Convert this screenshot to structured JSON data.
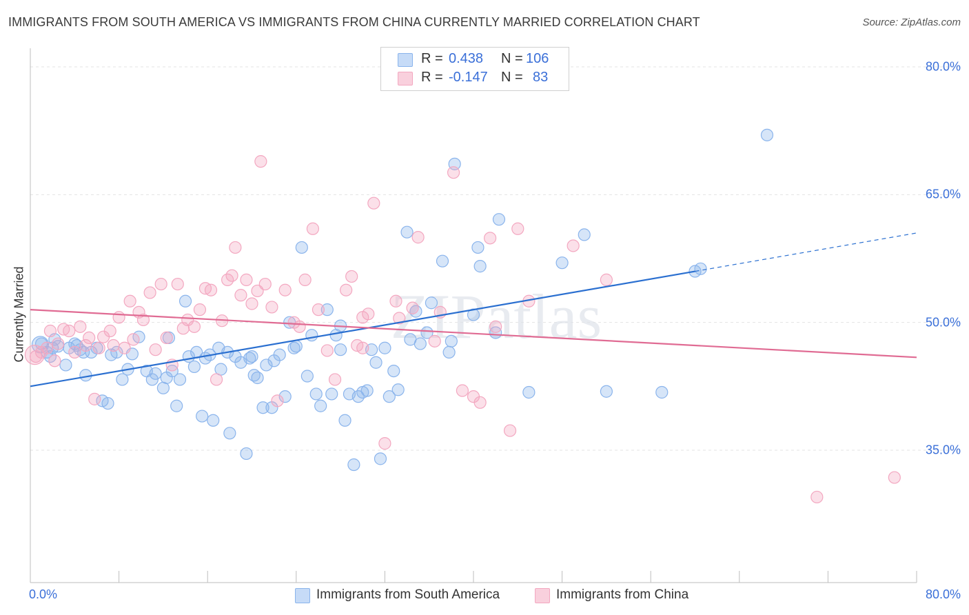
{
  "title": "IMMIGRANTS FROM SOUTH AMERICA VS IMMIGRANTS FROM CHINA CURRENTLY MARRIED CORRELATION CHART",
  "source": "Source: ZipAtlas.com",
  "watermark": "ZIPatlas",
  "legend": {
    "rows": [
      {
        "r_label": "R =",
        "r_value": "0.438",
        "n_label": "N =",
        "n_value": "106",
        "color": "#8ab4ec"
      },
      {
        "r_label": "R =",
        "r_value": "-0.147",
        "n_label": "N =",
        "n_value": "83",
        "color": "#f3a7c0"
      }
    ]
  },
  "chart_data": {
    "type": "scatter",
    "title": "IMMIGRANTS FROM SOUTH AMERICA VS IMMIGRANTS FROM CHINA CURRENTLY MARRIED CORRELATION CHART",
    "xlabel": "",
    "ylabel": "Currently Married",
    "xlim": [
      0,
      80
    ],
    "ylim": [
      20,
      82
    ],
    "x_tick_labels": [
      "0.0%",
      "80.0%"
    ],
    "y_ticks": [
      35,
      50,
      65,
      80
    ],
    "y_tick_labels": [
      "35.0%",
      "50.0%",
      "65.0%",
      "80.0%"
    ],
    "grid": true,
    "legend_position": "bottom",
    "series": [
      {
        "name": "Immigrants from South America",
        "color": "#8ab4ec",
        "line_color": "#2a6fd0",
        "trend": {
          "x0": 0,
          "y0": 42.5,
          "x1": 60,
          "y1": 56.0,
          "x_dash_end": 80,
          "y_dash_end": 60.5
        },
        "points": [
          [
            1.0,
            47.5
          ],
          [
            1.5,
            46.5
          ],
          [
            2.0,
            47.0
          ],
          [
            1.8,
            46.0
          ],
          [
            2.5,
            47.2
          ],
          [
            3.2,
            45.0
          ],
          [
            3.5,
            47.0
          ],
          [
            4.0,
            47.5
          ],
          [
            4.5,
            46.8
          ],
          [
            4.8,
            46.5
          ],
          [
            5.0,
            43.8
          ],
          [
            5.5,
            46.5
          ],
          [
            6.0,
            47.0
          ],
          [
            6.5,
            40.8
          ],
          [
            7.0,
            40.5
          ],
          [
            7.3,
            46.2
          ],
          [
            7.8,
            46.5
          ],
          [
            8.3,
            43.3
          ],
          [
            8.8,
            44.5
          ],
          [
            9.2,
            46.3
          ],
          [
            9.8,
            48.3
          ],
          [
            10.5,
            44.3
          ],
          [
            11.0,
            43.3
          ],
          [
            11.3,
            44.0
          ],
          [
            12.0,
            42.3
          ],
          [
            12.3,
            43.5
          ],
          [
            12.8,
            44.3
          ],
          [
            13.2,
            40.2
          ],
          [
            13.5,
            43.3
          ],
          [
            14.0,
            52.5
          ],
          [
            14.3,
            46.0
          ],
          [
            14.8,
            44.8
          ],
          [
            15.0,
            46.5
          ],
          [
            15.5,
            39.0
          ],
          [
            15.8,
            45.8
          ],
          [
            16.2,
            46.2
          ],
          [
            16.5,
            38.5
          ],
          [
            17.0,
            47.0
          ],
          [
            17.2,
            44.5
          ],
          [
            17.8,
            46.5
          ],
          [
            18.0,
            37.0
          ],
          [
            18.5,
            46.0
          ],
          [
            19.0,
            45.3
          ],
          [
            19.5,
            34.6
          ],
          [
            19.8,
            45.8
          ],
          [
            20.2,
            43.8
          ],
          [
            20.5,
            43.5
          ],
          [
            21.0,
            40.0
          ],
          [
            21.3,
            45.0
          ],
          [
            21.8,
            40.0
          ],
          [
            22.0,
            45.5
          ],
          [
            22.5,
            46.2
          ],
          [
            23.0,
            41.3
          ],
          [
            23.4,
            50.0
          ],
          [
            23.8,
            47.0
          ],
          [
            24.0,
            47.2
          ],
          [
            24.5,
            58.8
          ],
          [
            25.0,
            43.7
          ],
          [
            25.4,
            48.5
          ],
          [
            25.8,
            41.6
          ],
          [
            26.2,
            40.2
          ],
          [
            26.8,
            51.5
          ],
          [
            27.2,
            41.6
          ],
          [
            27.6,
            48.5
          ],
          [
            28.0,
            49.6
          ],
          [
            28.4,
            38.5
          ],
          [
            28.8,
            41.6
          ],
          [
            29.2,
            33.3
          ],
          [
            29.6,
            41.3
          ],
          [
            30.0,
            41.8
          ],
          [
            30.4,
            42.0
          ],
          [
            30.8,
            46.8
          ],
          [
            31.2,
            45.3
          ],
          [
            31.6,
            34.0
          ],
          [
            32.0,
            47.0
          ],
          [
            32.4,
            41.3
          ],
          [
            32.8,
            44.3
          ],
          [
            33.2,
            42.1
          ],
          [
            34.0,
            60.6
          ],
          [
            34.3,
            48.0
          ],
          [
            34.8,
            51.3
          ],
          [
            35.2,
            47.5
          ],
          [
            35.8,
            48.8
          ],
          [
            36.2,
            52.3
          ],
          [
            37.2,
            57.2
          ],
          [
            37.8,
            46.5
          ],
          [
            38.3,
            68.6
          ],
          [
            40.0,
            50.9
          ],
          [
            40.4,
            58.8
          ],
          [
            40.6,
            56.6
          ],
          [
            42.0,
            48.8
          ],
          [
            42.3,
            62.1
          ],
          [
            45.0,
            41.8
          ],
          [
            48.0,
            57.0
          ],
          [
            50.0,
            60.3
          ],
          [
            52.0,
            41.9
          ],
          [
            57.0,
            41.8
          ],
          [
            60.0,
            56.0
          ],
          [
            60.5,
            56.3
          ],
          [
            66.5,
            72.0
          ],
          [
            2.2,
            48.0
          ],
          [
            4.2,
            47.3
          ],
          [
            12.5,
            48.2
          ],
          [
            20.0,
            46.0
          ],
          [
            28.0,
            46.8
          ],
          [
            38.0,
            47.8
          ]
        ]
      },
      {
        "name": "Immigrants from China",
        "color": "#f3a7c0",
        "line_color": "#e06b93",
        "trend": {
          "x0": 0,
          "y0": 51.5,
          "x1": 80,
          "y1": 45.9
        },
        "points": [
          [
            0.5,
            46.0
          ],
          [
            1.0,
            46.5
          ],
          [
            1.5,
            47.0
          ],
          [
            1.8,
            49.0
          ],
          [
            2.2,
            45.5
          ],
          [
            2.5,
            47.5
          ],
          [
            3.0,
            49.2
          ],
          [
            3.5,
            49.0
          ],
          [
            4.0,
            46.5
          ],
          [
            4.5,
            49.5
          ],
          [
            5.0,
            47.3
          ],
          [
            5.3,
            48.2
          ],
          [
            5.8,
            41.0
          ],
          [
            6.2,
            47.0
          ],
          [
            6.6,
            48.3
          ],
          [
            7.2,
            49.0
          ],
          [
            7.5,
            47.3
          ],
          [
            8.0,
            50.6
          ],
          [
            8.5,
            47.0
          ],
          [
            9.0,
            52.5
          ],
          [
            9.3,
            48.0
          ],
          [
            9.8,
            51.2
          ],
          [
            10.2,
            50.3
          ],
          [
            10.8,
            53.5
          ],
          [
            11.3,
            46.8
          ],
          [
            11.8,
            54.5
          ],
          [
            12.3,
            48.2
          ],
          [
            12.8,
            45.0
          ],
          [
            13.3,
            54.5
          ],
          [
            13.8,
            49.3
          ],
          [
            14.2,
            50.3
          ],
          [
            14.8,
            49.5
          ],
          [
            15.3,
            51.5
          ],
          [
            15.8,
            54.0
          ],
          [
            16.3,
            53.8
          ],
          [
            16.8,
            43.3
          ],
          [
            17.3,
            50.2
          ],
          [
            17.8,
            55.0
          ],
          [
            18.2,
            55.5
          ],
          [
            18.5,
            58.8
          ],
          [
            19.0,
            53.2
          ],
          [
            19.5,
            55.0
          ],
          [
            20.0,
            52.2
          ],
          [
            20.5,
            53.7
          ],
          [
            20.8,
            68.9
          ],
          [
            21.2,
            54.5
          ],
          [
            21.8,
            51.8
          ],
          [
            22.3,
            40.8
          ],
          [
            23.0,
            53.8
          ],
          [
            23.8,
            50.0
          ],
          [
            24.3,
            49.5
          ],
          [
            24.8,
            55.0
          ],
          [
            25.5,
            61.0
          ],
          [
            26.0,
            51.5
          ],
          [
            26.8,
            46.7
          ],
          [
            27.5,
            43.3
          ],
          [
            28.5,
            53.8
          ],
          [
            29.0,
            55.4
          ],
          [
            29.5,
            47.3
          ],
          [
            30.0,
            50.6
          ],
          [
            30.5,
            51.0
          ],
          [
            31.0,
            64.0
          ],
          [
            32.0,
            35.8
          ],
          [
            33.0,
            52.5
          ],
          [
            33.3,
            50.5
          ],
          [
            34.5,
            51.7
          ],
          [
            35.0,
            60.0
          ],
          [
            36.5,
            47.8
          ],
          [
            37.0,
            51.2
          ],
          [
            38.2,
            67.6
          ],
          [
            39.0,
            42.0
          ],
          [
            40.0,
            41.3
          ],
          [
            40.6,
            40.6
          ],
          [
            41.5,
            59.9
          ],
          [
            42.0,
            49.5
          ],
          [
            43.3,
            37.3
          ],
          [
            44.0,
            61.0
          ],
          [
            45.0,
            52.5
          ],
          [
            49.0,
            59.0
          ],
          [
            52.0,
            55.0
          ],
          [
            71.0,
            29.5
          ],
          [
            78.0,
            31.8
          ],
          [
            30.0,
            47.0
          ]
        ]
      }
    ]
  }
}
